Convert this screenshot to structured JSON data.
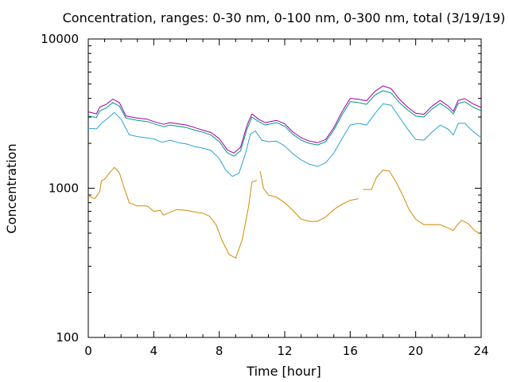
{
  "chart_data": {
    "type": "line",
    "title": "Concentration, ranges: 0-30 nm, 0-100 nm, 0-300 nm, total (3/19/19)",
    "xlabel": "Time [hour]",
    "ylabel": "Concentration",
    "xlim": [
      0,
      24
    ],
    "ylim": [
      100,
      10000
    ],
    "yscale": "log",
    "grid": false,
    "legend": "none",
    "x_ticks": [
      0,
      4,
      8,
      12,
      16,
      20,
      24
    ],
    "x_minor_ticks": [
      1,
      2,
      3,
      5,
      6,
      7,
      9,
      10,
      11,
      13,
      14,
      15,
      17,
      18,
      19,
      21,
      22,
      23
    ],
    "y_ticks": [
      100,
      1000,
      10000
    ],
    "y_minor_ticks": [
      200,
      300,
      400,
      500,
      600,
      700,
      800,
      900,
      2000,
      3000,
      4000,
      5000,
      6000,
      7000,
      8000,
      9000
    ],
    "series": [
      {
        "color": "#d08a00",
        "segments": [
          [
            [
              0,
              890
            ],
            [
              0.4,
              850
            ],
            [
              0.7,
              950
            ],
            [
              0.8,
              1120
            ],
            [
              1.0,
              1150
            ],
            [
              1.2,
              1230
            ],
            [
              1.6,
              1380
            ],
            [
              1.9,
              1270
            ],
            [
              2.2,
              1000
            ],
            [
              2.5,
              800
            ],
            [
              3.0,
              760
            ],
            [
              3.6,
              760
            ],
            [
              4.0,
              700
            ],
            [
              4.4,
              710
            ],
            [
              4.6,
              660
            ],
            [
              5.0,
              690
            ],
            [
              5.4,
              720
            ],
            [
              6.0,
              710
            ],
            [
              6.6,
              690
            ],
            [
              7.0,
              680
            ],
            [
              7.4,
              650
            ],
            [
              7.8,
              570
            ],
            [
              8.2,
              440
            ],
            [
              8.6,
              360
            ],
            [
              9.0,
              340
            ],
            [
              9.4,
              450
            ],
            [
              9.8,
              760
            ],
            [
              10.0,
              1100
            ],
            [
              10.3,
              1130
            ]
          ],
          [
            [
              10.5,
              1300
            ],
            [
              10.7,
              1000
            ],
            [
              11.0,
              900
            ],
            [
              11.5,
              870
            ],
            [
              12.0,
              800
            ],
            [
              12.5,
              710
            ],
            [
              13.0,
              620
            ],
            [
              13.5,
              600
            ],
            [
              14.0,
              600
            ],
            [
              14.5,
              640
            ],
            [
              15.0,
              720
            ],
            [
              15.5,
              780
            ],
            [
              16.0,
              830
            ],
            [
              16.5,
              850
            ]
          ],
          [
            [
              16.8,
              980
            ],
            [
              17.3,
              980
            ],
            [
              17.6,
              1180
            ],
            [
              18.0,
              1320
            ],
            [
              18.4,
              1300
            ],
            [
              18.8,
              1100
            ],
            [
              19.2,
              900
            ],
            [
              19.6,
              720
            ],
            [
              20.0,
              620
            ],
            [
              20.5,
              570
            ],
            [
              21.0,
              570
            ],
            [
              21.5,
              570
            ],
            [
              22.0,
              540
            ],
            [
              22.3,
              520
            ],
            [
              22.5,
              560
            ],
            [
              22.8,
              610
            ],
            [
              23.2,
              580
            ],
            [
              23.6,
              520
            ],
            [
              24.0,
              490
            ]
          ]
        ]
      },
      {
        "color": "#2aa2d8",
        "segments": [
          [
            [
              0,
              2520
            ],
            [
              0.5,
              2500
            ],
            [
              0.8,
              2720
            ],
            [
              1.2,
              2950
            ],
            [
              1.6,
              3220
            ],
            [
              2.0,
              2900
            ],
            [
              2.5,
              2280
            ],
            [
              3.0,
              2220
            ],
            [
              4.0,
              2140
            ],
            [
              4.5,
              2030
            ],
            [
              5.0,
              2100
            ],
            [
              5.5,
              2020
            ],
            [
              6.0,
              1980
            ],
            [
              6.5,
              1900
            ],
            [
              7.0,
              1860
            ],
            [
              7.5,
              1790
            ],
            [
              8.0,
              1580
            ],
            [
              8.4,
              1320
            ],
            [
              8.8,
              1200
            ],
            [
              9.2,
              1260
            ],
            [
              9.6,
              1700
            ],
            [
              9.9,
              2300
            ],
            [
              10.2,
              2420
            ],
            [
              10.6,
              2100
            ],
            [
              11.0,
              2050
            ],
            [
              11.5,
              2070
            ],
            [
              12.0,
              1920
            ],
            [
              12.5,
              1700
            ],
            [
              13.0,
              1550
            ],
            [
              13.5,
              1450
            ],
            [
              14.0,
              1400
            ],
            [
              14.5,
              1480
            ],
            [
              15.0,
              1720
            ],
            [
              15.5,
              2150
            ],
            [
              16.0,
              2650
            ],
            [
              16.5,
              2720
            ],
            [
              17.0,
              2650
            ],
            [
              17.5,
              3150
            ],
            [
              18.0,
              3680
            ],
            [
              18.5,
              3600
            ],
            [
              19.0,
              3000
            ],
            [
              19.5,
              2500
            ],
            [
              20.0,
              2120
            ],
            [
              20.5,
              2100
            ],
            [
              21.0,
              2380
            ],
            [
              21.5,
              2650
            ],
            [
              22.0,
              2480
            ],
            [
              22.3,
              2270
            ],
            [
              22.6,
              2720
            ],
            [
              23.0,
              2720
            ],
            [
              23.5,
              2400
            ],
            [
              24.0,
              2180
            ]
          ]
        ]
      },
      {
        "color": "#009a78",
        "segments": [
          [
            [
              0,
              3050
            ],
            [
              0.5,
              2980
            ],
            [
              0.7,
              3300
            ],
            [
              1.1,
              3450
            ],
            [
              1.5,
              3750
            ],
            [
              1.9,
              3550
            ],
            [
              2.3,
              2950
            ],
            [
              3.0,
              2850
            ],
            [
              3.6,
              2800
            ],
            [
              4.0,
              2710
            ],
            [
              4.6,
              2580
            ],
            [
              5.0,
              2650
            ],
            [
              5.5,
              2600
            ],
            [
              6.0,
              2550
            ],
            [
              6.5,
              2450
            ],
            [
              7.0,
              2370
            ],
            [
              7.5,
              2270
            ],
            [
              8.0,
              2050
            ],
            [
              8.5,
              1720
            ],
            [
              8.9,
              1640
            ],
            [
              9.3,
              1780
            ],
            [
              9.7,
              2500
            ],
            [
              10.0,
              3000
            ],
            [
              10.4,
              2800
            ],
            [
              10.8,
              2650
            ],
            [
              11.5,
              2750
            ],
            [
              12.0,
              2600
            ],
            [
              12.5,
              2300
            ],
            [
              13.0,
              2100
            ],
            [
              13.5,
              2000
            ],
            [
              14.0,
              1950
            ],
            [
              14.5,
              2050
            ],
            [
              15.0,
              2450
            ],
            [
              15.5,
              3100
            ],
            [
              16.0,
              3800
            ],
            [
              16.5,
              3750
            ],
            [
              17.0,
              3650
            ],
            [
              17.5,
              4200
            ],
            [
              18.0,
              4500
            ],
            [
              18.5,
              4350
            ],
            [
              19.0,
              3750
            ],
            [
              19.5,
              3350
            ],
            [
              20.0,
              3050
            ],
            [
              20.5,
              3000
            ],
            [
              21.0,
              3400
            ],
            [
              21.5,
              3700
            ],
            [
              22.0,
              3400
            ],
            [
              22.3,
              3150
            ],
            [
              22.6,
              3700
            ],
            [
              23.0,
              3800
            ],
            [
              23.5,
              3500
            ],
            [
              24.0,
              3300
            ]
          ]
        ]
      },
      {
        "color": "#9a00b0",
        "segments": [
          [
            [
              0,
              3250
            ],
            [
              0.5,
              3150
            ],
            [
              0.7,
              3500
            ],
            [
              1.1,
              3650
            ],
            [
              1.5,
              3950
            ],
            [
              1.9,
              3750
            ],
            [
              2.3,
              3050
            ],
            [
              3.0,
              2950
            ],
            [
              3.6,
              2900
            ],
            [
              4.0,
              2800
            ],
            [
              4.6,
              2680
            ],
            [
              5.0,
              2750
            ],
            [
              5.5,
              2700
            ],
            [
              6.0,
              2650
            ],
            [
              6.5,
              2550
            ],
            [
              7.0,
              2450
            ],
            [
              7.5,
              2360
            ],
            [
              8.0,
              2150
            ],
            [
              8.5,
              1800
            ],
            [
              8.9,
              1720
            ],
            [
              9.3,
              1880
            ],
            [
              9.7,
              2650
            ],
            [
              10.0,
              3150
            ],
            [
              10.4,
              2900
            ],
            [
              10.8,
              2750
            ],
            [
              11.5,
              2850
            ],
            [
              12.0,
              2700
            ],
            [
              12.5,
              2380
            ],
            [
              13.0,
              2180
            ],
            [
              13.5,
              2070
            ],
            [
              14.0,
              2020
            ],
            [
              14.5,
              2120
            ],
            [
              15.0,
              2550
            ],
            [
              15.5,
              3250
            ],
            [
              16.0,
              4000
            ],
            [
              16.5,
              3950
            ],
            [
              17.0,
              3850
            ],
            [
              17.5,
              4450
            ],
            [
              18.0,
              4850
            ],
            [
              18.5,
              4650
            ],
            [
              19.0,
              3950
            ],
            [
              19.5,
              3500
            ],
            [
              20.0,
              3180
            ],
            [
              20.5,
              3130
            ],
            [
              21.0,
              3550
            ],
            [
              21.5,
              3880
            ],
            [
              22.0,
              3550
            ],
            [
              22.3,
              3280
            ],
            [
              22.6,
              3880
            ],
            [
              23.0,
              3980
            ],
            [
              23.5,
              3680
            ],
            [
              24.0,
              3480
            ]
          ]
        ]
      }
    ]
  }
}
